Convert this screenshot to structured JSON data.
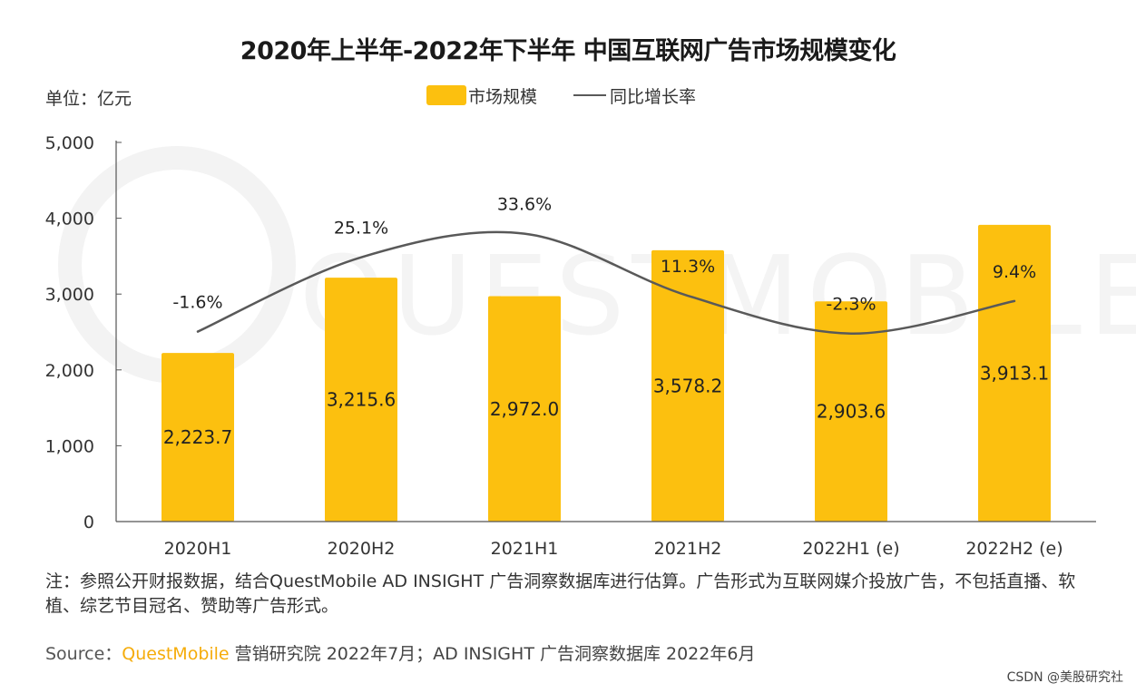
{
  "chart_data": {
    "type": "bar",
    "title": "2020年上半年-2022年下半年 中国互联网广告市场规模变化",
    "unit_label": "单位：亿元",
    "categories": [
      "2020H1",
      "2020H2",
      "2021H1",
      "2021H2",
      "2022H1 (e)",
      "2022H2 (e)"
    ],
    "series": [
      {
        "name": "市场规模",
        "kind": "bar",
        "color": "#fcc00f",
        "values": [
          2223.7,
          3215.6,
          2972.0,
          3578.2,
          2903.6,
          3913.1
        ],
        "labels": [
          "2,223.7",
          "3,215.6",
          "2,972.0",
          "3,578.2",
          "2,903.6",
          "3,913.1"
        ]
      },
      {
        "name": "同比增长率",
        "kind": "line",
        "color": "#595959",
        "values": [
          -1.6,
          25.1,
          33.6,
          11.3,
          -2.3,
          9.4
        ],
        "labels": [
          "-1.6%",
          "25.1%",
          "33.6%",
          "11.3%",
          "-2.3%",
          "9.4%"
        ]
      }
    ],
    "yaxis": {
      "min": 0,
      "max": 5000,
      "ticks": [
        0,
        1000,
        2000,
        3000,
        4000,
        5000
      ],
      "tick_labels": [
        "0",
        "1,000",
        "2,000",
        "3,000",
        "4,000",
        "5,000"
      ]
    },
    "growth_axis_range": [
      -5,
      40
    ],
    "xlabel": "",
    "ylabel": "",
    "legend_position": "top-center",
    "grid": false
  },
  "note": "注：参照公开财报数据，结合QuestMobile AD INSIGHT 广告洞察数据库进行估算。广告形式为互联网媒介投放广告，不包括直播、软植、综艺节目冠名、赞助等广告形式。",
  "source": {
    "label": "Source：",
    "brand": "QuestMobile",
    "text": " 营销研究院 2022年7月；AD INSIGHT 广告洞察数据库 2022年6月"
  },
  "watermark": "QUESTMOBILE",
  "csdn_watermark": "CSDN @美股研究社",
  "colors": {
    "bar": "#fcc00f",
    "line": "#595959",
    "axis": "#555555",
    "brand": "#f5ac0a"
  }
}
